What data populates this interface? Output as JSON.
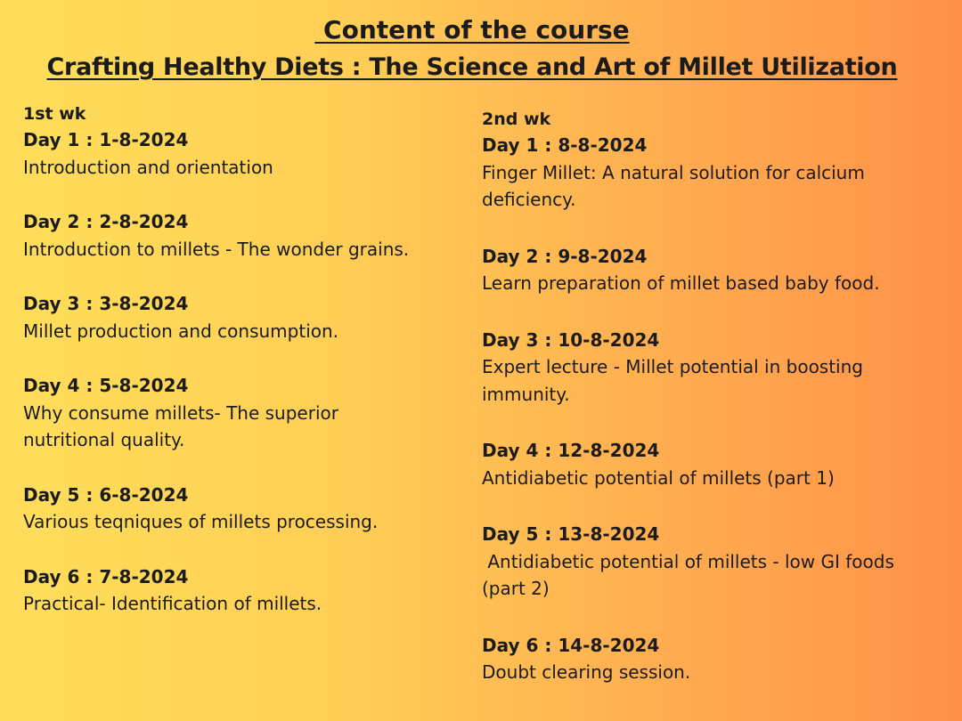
{
  "page": {
    "title": " Content of the course",
    "subtitle": "Crafting Healthy Diets : The Science and Art of Millet Utilization",
    "background": {
      "from": "#ffde5a",
      "to": "#ff9148"
    }
  },
  "weeks": [
    {
      "label": "1st wk",
      "days": [
        {
          "title": "Day 1 : 1-8-2024",
          "desc": "Introduction and orientation"
        },
        {
          "title": "Day 2 : 2-8-2024",
          "desc": "Introduction to millets - The wonder grains."
        },
        {
          "title": "Day 3 : 3-8-2024",
          "desc": "Millet production and consumption."
        },
        {
          "title": "Day 4 : 5-8-2024",
          "desc": "Why consume millets- The superior nutritional quality."
        },
        {
          "title": "Day 5 : 6-8-2024",
          "desc": "Various teqniques of millets processing."
        },
        {
          "title": "Day 6 : 7-8-2024",
          "desc": "Practical- Identification of millets."
        }
      ]
    },
    {
      "label": "2nd wk",
      "days": [
        {
          "title": "Day 1 : 8-8-2024",
          "desc": "Finger Millet: A natural solution for calcium deficiency."
        },
        {
          "title": "Day 2 : 9-8-2024",
          "desc": "Learn preparation of millet based baby food."
        },
        {
          "title": "Day 3 : 10-8-2024",
          "desc": "Expert lecture - Millet potential in boosting immunity."
        },
        {
          "title": "Day 4 : 12-8-2024",
          "desc": "Antidiabetic potential of millets (part 1)"
        },
        {
          "title": "Day 5 : 13-8-2024",
          "desc": " Antidiabetic potential of millets - low GI foods (part 2)"
        },
        {
          "title": "Day 6 : 14-8-2024",
          "desc": "Doubt clearing session."
        }
      ]
    }
  ]
}
